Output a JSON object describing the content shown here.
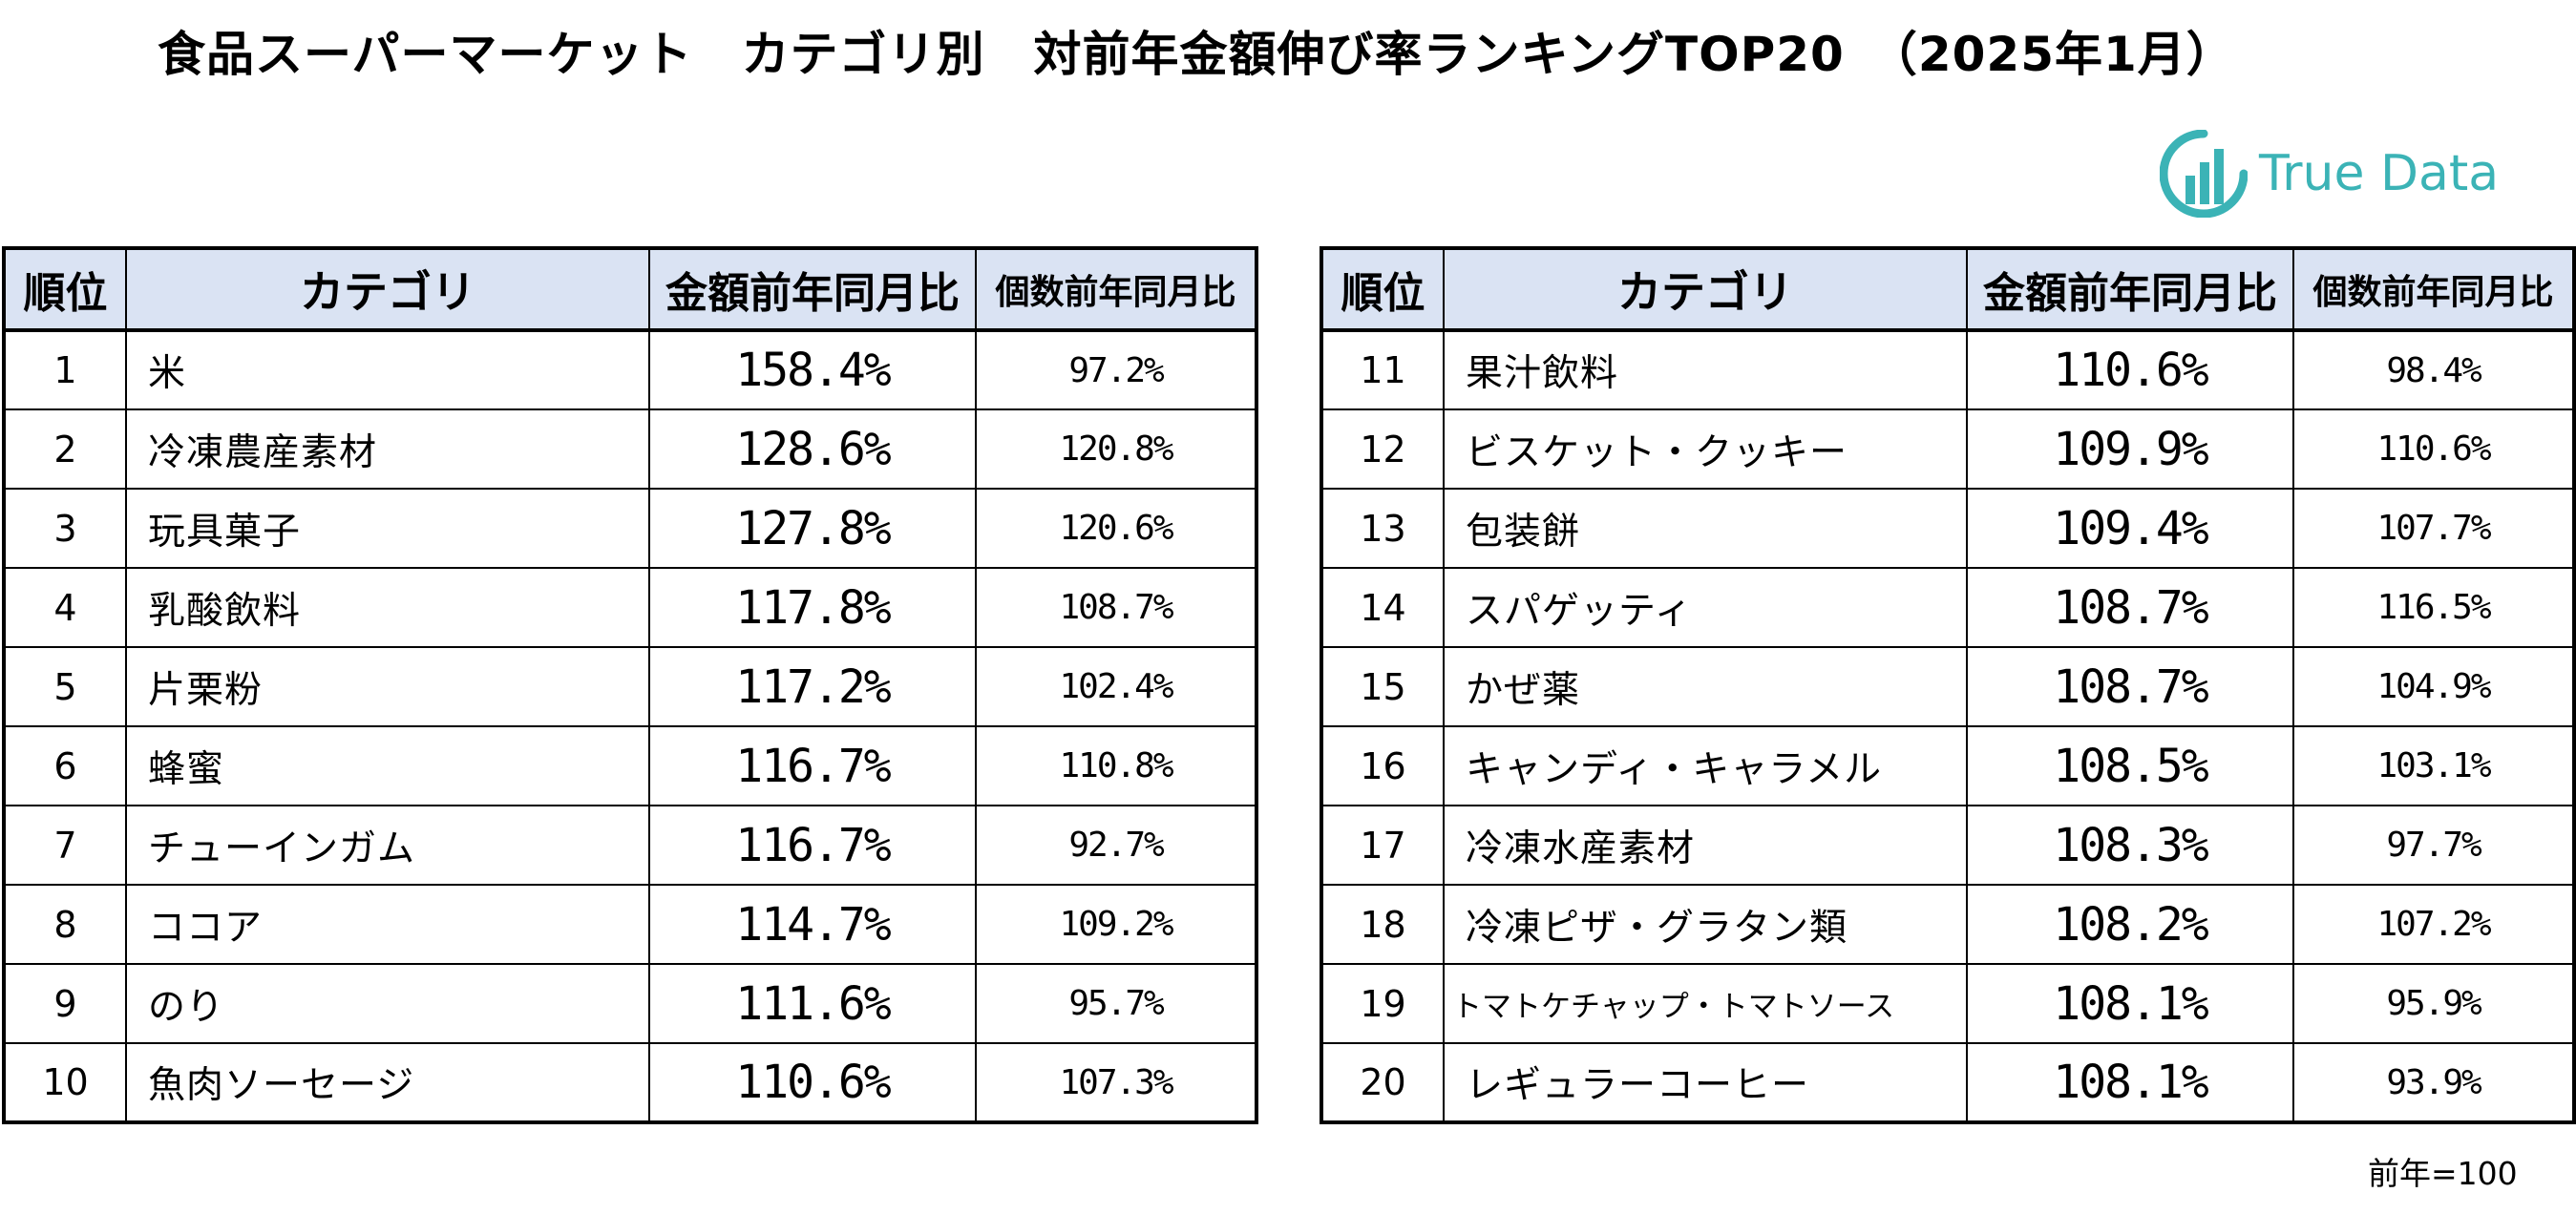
{
  "title": "食品スーパーマーケット　カテゴリ別　対前年金額伸び率ランキングTOP20　（2025年1月）",
  "logo": {
    "text": "True Data",
    "icon": "truedata-chart-logo-icon",
    "color": "#3bb3b6"
  },
  "table": {
    "headers": {
      "rank": "順位",
      "category": "カテゴリ",
      "amount_yoy": "金額前年同月比",
      "quantity_yoy": "個数前年同月比"
    },
    "header_background": "#dae3f3",
    "rows": [
      {
        "rank": "1",
        "category": "米",
        "amount_yoy": "158.4%",
        "quantity_yoy": "97.2%"
      },
      {
        "rank": "2",
        "category": "冷凍農産素材",
        "amount_yoy": "128.6%",
        "quantity_yoy": "120.8%"
      },
      {
        "rank": "3",
        "category": "玩具菓子",
        "amount_yoy": "127.8%",
        "quantity_yoy": "120.6%"
      },
      {
        "rank": "4",
        "category": "乳酸飲料",
        "amount_yoy": "117.8%",
        "quantity_yoy": "108.7%"
      },
      {
        "rank": "5",
        "category": "片栗粉",
        "amount_yoy": "117.2%",
        "quantity_yoy": "102.4%"
      },
      {
        "rank": "6",
        "category": "蜂蜜",
        "amount_yoy": "116.7%",
        "quantity_yoy": "110.8%"
      },
      {
        "rank": "7",
        "category": "チューインガム",
        "amount_yoy": "116.7%",
        "quantity_yoy": "92.7%"
      },
      {
        "rank": "8",
        "category": "ココア",
        "amount_yoy": "114.7%",
        "quantity_yoy": "109.2%"
      },
      {
        "rank": "9",
        "category": "のり",
        "amount_yoy": "111.6%",
        "quantity_yoy": "95.7%"
      },
      {
        "rank": "10",
        "category": "魚肉ソーセージ",
        "amount_yoy": "110.6%",
        "quantity_yoy": "107.3%"
      },
      {
        "rank": "11",
        "category": "果汁飲料",
        "amount_yoy": "110.6%",
        "quantity_yoy": "98.4%"
      },
      {
        "rank": "12",
        "category": "ビスケット・クッキー",
        "amount_yoy": "109.9%",
        "quantity_yoy": "110.6%"
      },
      {
        "rank": "13",
        "category": "包装餅",
        "amount_yoy": "109.4%",
        "quantity_yoy": "107.7%"
      },
      {
        "rank": "14",
        "category": "スパゲッティ",
        "amount_yoy": "108.7%",
        "quantity_yoy": "116.5%"
      },
      {
        "rank": "15",
        "category": "かぜ薬",
        "amount_yoy": "108.7%",
        "quantity_yoy": "104.9%"
      },
      {
        "rank": "16",
        "category": "キャンディ・キャラメル",
        "amount_yoy": "108.5%",
        "quantity_yoy": "103.1%"
      },
      {
        "rank": "17",
        "category": "冷凍水産素材",
        "amount_yoy": "108.3%",
        "quantity_yoy": "97.7%"
      },
      {
        "rank": "18",
        "category": "冷凍ピザ・グラタン類",
        "amount_yoy": "108.2%",
        "quantity_yoy": "107.2%"
      },
      {
        "rank": "19",
        "category": "トマトケチャップ・トマトソース",
        "amount_yoy": "108.1%",
        "quantity_yoy": "95.9%"
      },
      {
        "rank": "20",
        "category": "レギュラーコーヒー",
        "amount_yoy": "108.1%",
        "quantity_yoy": "93.9%"
      }
    ]
  },
  "note": "前年=100"
}
